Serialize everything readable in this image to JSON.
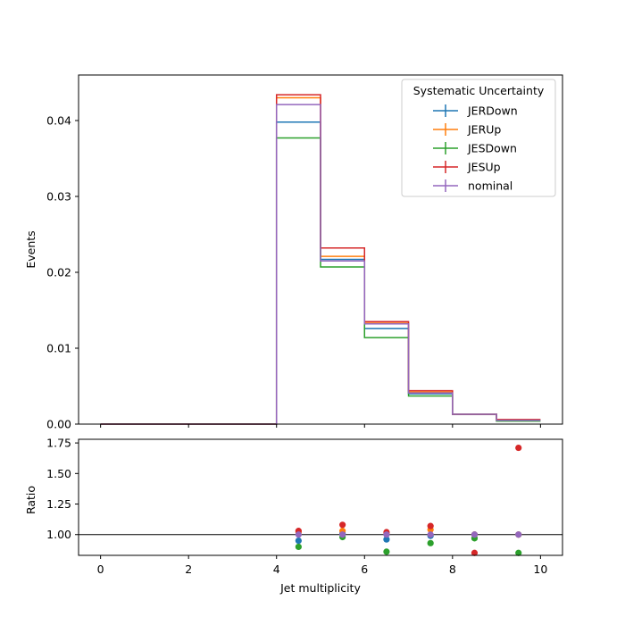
{
  "chart_data": [
    {
      "type": "line",
      "ylabel": "Events",
      "xlim": [
        -0.5,
        10.5
      ],
      "ylim": [
        0,
        0.046
      ],
      "yticks": [
        "0.00",
        "0.01",
        "0.02",
        "0.03",
        "0.04"
      ],
      "yticks_values": [
        0,
        0.01,
        0.02,
        0.03,
        0.04
      ],
      "xticks_values": [
        0,
        2,
        4,
        6,
        8,
        10
      ],
      "bin_edges": [
        0,
        1,
        2,
        3,
        4,
        5,
        6,
        7,
        8,
        9,
        10
      ],
      "legend": {
        "title": "Systematic Uncertainty",
        "placement": "top-right"
      },
      "series": [
        {
          "name": "JERDown",
          "color": "#1f77b4",
          "values": [
            0,
            0,
            0,
            0,
            0.0398,
            0.0217,
            0.0126,
            0.004,
            0.0013,
            0.0005
          ]
        },
        {
          "name": "JERUp",
          "color": "#ff7f0e",
          "values": [
            0,
            0,
            0,
            0,
            0.043,
            0.0221,
            0.0133,
            0.0042,
            0.0013,
            0.0005
          ]
        },
        {
          "name": "JESDown",
          "color": "#2ca02c",
          "values": [
            0,
            0,
            0,
            0,
            0.0377,
            0.0207,
            0.0114,
            0.0037,
            0.0013,
            0.0004
          ]
        },
        {
          "name": "JESUp",
          "color": "#d62728",
          "values": [
            0,
            0,
            0,
            0,
            0.0434,
            0.0232,
            0.0135,
            0.0044,
            0.0013,
            0.0006
          ]
        },
        {
          "name": "nominal",
          "color": "#9467bd",
          "values": [
            0,
            0,
            0,
            0,
            0.0421,
            0.0215,
            0.0132,
            0.0041,
            0.0013,
            0.0005
          ]
        }
      ]
    },
    {
      "type": "scatter",
      "xlabel": "Jet multiplicity",
      "ylabel": "Ratio",
      "xlim": [
        -0.5,
        10.5
      ],
      "ylim": [
        0.83,
        1.78
      ],
      "xticks": [
        "0",
        "2",
        "4",
        "6",
        "8",
        "10"
      ],
      "xticks_values": [
        0,
        2,
        4,
        6,
        8,
        10
      ],
      "yticks": [
        "1.00",
        "1.25",
        "1.50",
        "1.75"
      ],
      "yticks_values": [
        1.0,
        1.25,
        1.5,
        1.75
      ],
      "reference_line": 1.0,
      "x": [
        4.5,
        5.5,
        6.5,
        7.5,
        8.5,
        9.5
      ],
      "series": [
        {
          "name": "JERDown",
          "color": "#1f77b4",
          "values": [
            0.95,
            1.01,
            0.96,
            0.99,
            1.0,
            1.0
          ]
        },
        {
          "name": "JERUp",
          "color": "#ff7f0e",
          "values": [
            1.02,
            1.03,
            1.01,
            1.04,
            1.0,
            1.0
          ]
        },
        {
          "name": "JESDown",
          "color": "#2ca02c",
          "values": [
            0.9,
            0.98,
            0.86,
            0.93,
            0.97,
            0.85
          ]
        },
        {
          "name": "JESUp",
          "color": "#d62728",
          "values": [
            1.03,
            1.08,
            1.02,
            1.07,
            0.85,
            1.71
          ]
        },
        {
          "name": "nominal",
          "color": "#9467bd",
          "values": [
            1.0,
            1.0,
            1.0,
            1.0,
            1.0,
            1.0
          ]
        }
      ]
    }
  ]
}
